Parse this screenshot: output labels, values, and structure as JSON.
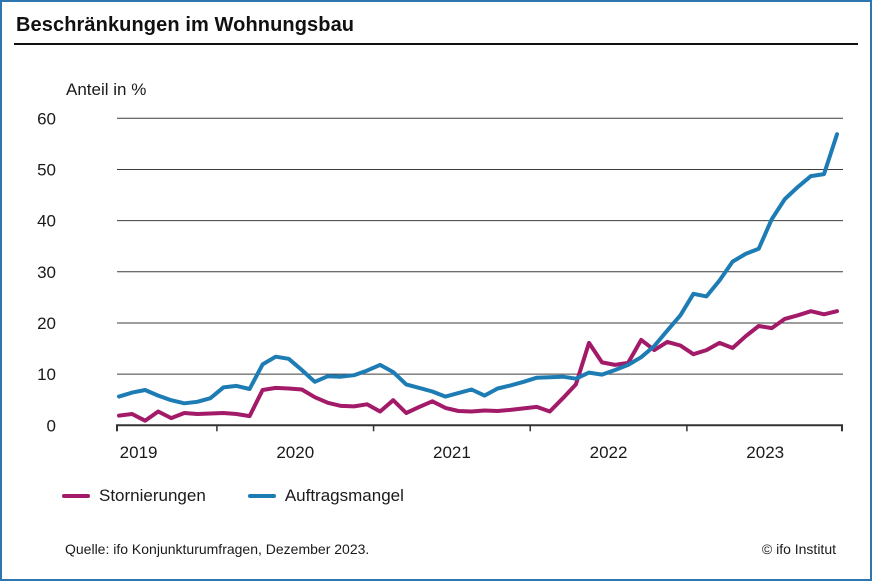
{
  "meta": {
    "source": "Quelle: ifo Konjunkturumfragen, Dezember 2023.",
    "copyright": "© ifo Institut"
  },
  "colors": {
    "frame": "#2e76b0",
    "grid": "#3d3d3d",
    "axis": "#333333",
    "text": "#1a1a1a"
  },
  "chart_data": {
    "type": "line",
    "title": "Beschränkungen im Wohnungsbau",
    "ylabel": "Anteil in %",
    "ylim": [
      0,
      60
    ],
    "yticks": [
      0,
      10,
      20,
      30,
      40,
      50,
      60
    ],
    "grid": true,
    "legend_position": "bottom",
    "x_tick_years": [
      "2019",
      "2020",
      "2021",
      "2022",
      "2023"
    ],
    "x": [
      "2019-05",
      "2019-06",
      "2019-07",
      "2019-08",
      "2019-09",
      "2019-10",
      "2019-11",
      "2019-12",
      "2020-01",
      "2020-02",
      "2020-03",
      "2020-04",
      "2020-05",
      "2020-06",
      "2020-07",
      "2020-08",
      "2020-09",
      "2020-10",
      "2020-11",
      "2020-12",
      "2021-01",
      "2021-02",
      "2021-03",
      "2021-04",
      "2021-05",
      "2021-06",
      "2021-07",
      "2021-08",
      "2021-09",
      "2021-10",
      "2021-11",
      "2021-12",
      "2022-01",
      "2022-02",
      "2022-03",
      "2022-04",
      "2022-05",
      "2022-06",
      "2022-07",
      "2022-08",
      "2022-09",
      "2022-10",
      "2022-11",
      "2022-12",
      "2023-01",
      "2023-02",
      "2023-03",
      "2023-04",
      "2023-05",
      "2023-06",
      "2023-07",
      "2023-08",
      "2023-09",
      "2023-10",
      "2023-11",
      "2023-12"
    ],
    "series": [
      {
        "name": "Stornierungen",
        "color": "#a21a68",
        "values": [
          1.9,
          2.2,
          0.9,
          2.7,
          1.4,
          2.4,
          2.2,
          2.3,
          2.4,
          2.2,
          1.8,
          6.9,
          7.3,
          7.2,
          7.0,
          5.5,
          4.4,
          3.8,
          3.7,
          4.1,
          2.7,
          4.9,
          2.4,
          3.6,
          4.7,
          3.4,
          2.8,
          2.7,
          2.9,
          2.8,
          3.0,
          3.3,
          3.6,
          2.7,
          5.3,
          8.0,
          16.1,
          12.3,
          11.8,
          12.2,
          16.7,
          14.7,
          16.3,
          15.6,
          13.9,
          14.7,
          16.1,
          15.1,
          17.4,
          19.4,
          19.0,
          20.8,
          21.5,
          22.3,
          21.7,
          22.3
        ]
      },
      {
        "name": "Auftragsmangel",
        "color": "#1d7cb4",
        "values": [
          5.6,
          6.4,
          6.9,
          5.8,
          4.9,
          4.3,
          4.6,
          5.3,
          7.4,
          7.7,
          7.1,
          11.9,
          13.4,
          13.0,
          10.8,
          8.5,
          9.6,
          9.5,
          9.8,
          10.7,
          11.8,
          10.4,
          8.0,
          7.3,
          6.6,
          5.6,
          6.3,
          7.0,
          5.8,
          7.2,
          7.8,
          8.5,
          9.3,
          9.4,
          9.5,
          9.1,
          10.3,
          9.9,
          10.8,
          11.8,
          13.3,
          15.5,
          18.5,
          21.5,
          25.7,
          25.2,
          28.3,
          32.0,
          33.5,
          34.5,
          40.3,
          44.2,
          46.6,
          48.7,
          49.1,
          56.9
        ]
      }
    ]
  }
}
